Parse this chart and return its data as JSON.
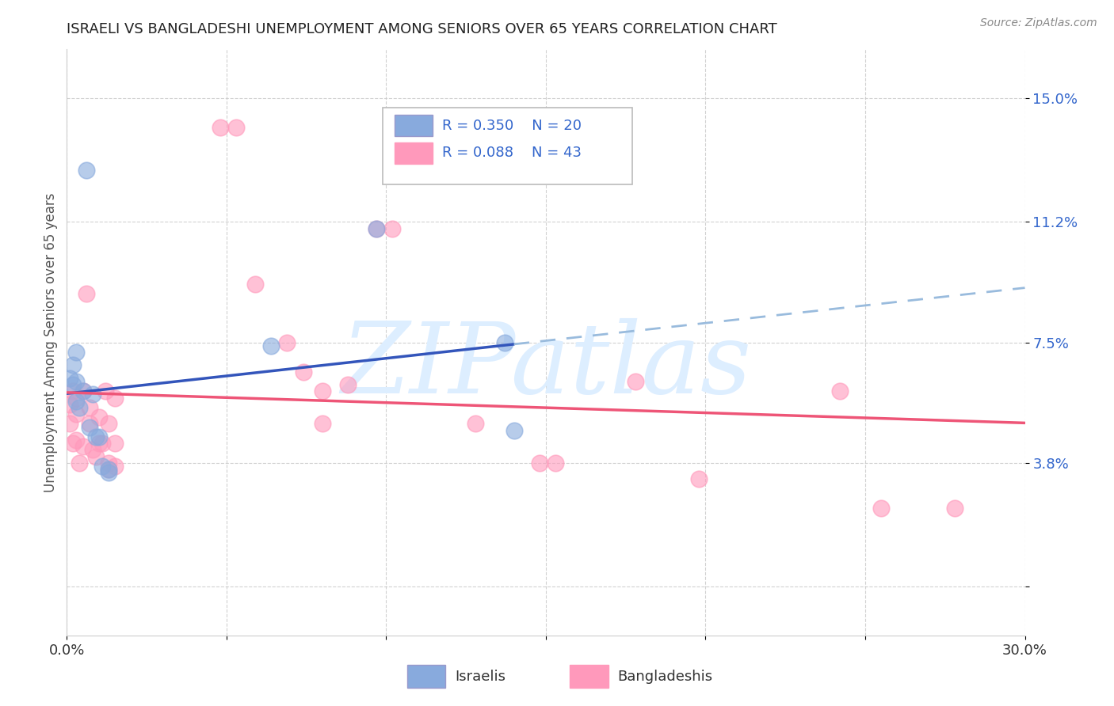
{
  "title": "ISRAELI VS BANGLADESHI UNEMPLOYMENT AMONG SENIORS OVER 65 YEARS CORRELATION CHART",
  "source": "Source: ZipAtlas.com",
  "ylabel": "Unemployment Among Seniors over 65 years",
  "xlim": [
    0.0,
    0.3
  ],
  "ylim": [
    -0.015,
    0.165
  ],
  "ytick_positions": [
    0.0,
    0.038,
    0.075,
    0.112,
    0.15
  ],
  "ytick_labels": [
    "",
    "3.8%",
    "7.5%",
    "11.2%",
    "15.0%"
  ],
  "xtick_positions": [
    0.0,
    0.05,
    0.1,
    0.15,
    0.2,
    0.25,
    0.3
  ],
  "xtick_labels": [
    "0.0%",
    "",
    "",
    "",
    "",
    "",
    "30.0%"
  ],
  "legend_israeli_R": "R = 0.350",
  "legend_israeli_N": "N = 20",
  "legend_bangladeshi_R": "R = 0.088",
  "legend_bangladeshi_N": "N = 43",
  "israeli_color": "#88AADD",
  "bangladeshi_color": "#FF99BB",
  "israeli_trend_color": "#3355BB",
  "bangladeshi_trend_color": "#EE5577",
  "israeli_dashed_color": "#99BBDD",
  "watermark_text": "ZIPatlas",
  "watermark_color": "#DDEEFF",
  "israeli_points": [
    [
      0.001,
      0.064
    ],
    [
      0.002,
      0.068
    ],
    [
      0.002,
      0.062
    ],
    [
      0.003,
      0.072
    ],
    [
      0.003,
      0.063
    ],
    [
      0.003,
      0.057
    ],
    [
      0.004,
      0.055
    ],
    [
      0.005,
      0.06
    ],
    [
      0.006,
      0.128
    ],
    [
      0.007,
      0.049
    ],
    [
      0.008,
      0.059
    ],
    [
      0.009,
      0.046
    ],
    [
      0.01,
      0.046
    ],
    [
      0.011,
      0.037
    ],
    [
      0.013,
      0.036
    ],
    [
      0.013,
      0.035
    ],
    [
      0.064,
      0.074
    ],
    [
      0.097,
      0.11
    ],
    [
      0.137,
      0.075
    ],
    [
      0.14,
      0.048
    ]
  ],
  "bangladeshi_points": [
    [
      0.001,
      0.056
    ],
    [
      0.001,
      0.05
    ],
    [
      0.002,
      0.044
    ],
    [
      0.002,
      0.06
    ],
    [
      0.003,
      0.058
    ],
    [
      0.003,
      0.053
    ],
    [
      0.003,
      0.045
    ],
    [
      0.004,
      0.038
    ],
    [
      0.005,
      0.06
    ],
    [
      0.005,
      0.043
    ],
    [
      0.006,
      0.09
    ],
    [
      0.007,
      0.055
    ],
    [
      0.007,
      0.05
    ],
    [
      0.008,
      0.042
    ],
    [
      0.009,
      0.04
    ],
    [
      0.01,
      0.052
    ],
    [
      0.01,
      0.044
    ],
    [
      0.011,
      0.044
    ],
    [
      0.012,
      0.06
    ],
    [
      0.013,
      0.05
    ],
    [
      0.013,
      0.038
    ],
    [
      0.013,
      0.036
    ],
    [
      0.015,
      0.044
    ],
    [
      0.015,
      0.037
    ],
    [
      0.015,
      0.058
    ],
    [
      0.048,
      0.141
    ],
    [
      0.053,
      0.141
    ],
    [
      0.059,
      0.093
    ],
    [
      0.069,
      0.075
    ],
    [
      0.074,
      0.066
    ],
    [
      0.08,
      0.06
    ],
    [
      0.08,
      0.05
    ],
    [
      0.088,
      0.062
    ],
    [
      0.097,
      0.11
    ],
    [
      0.102,
      0.11
    ],
    [
      0.128,
      0.05
    ],
    [
      0.148,
      0.038
    ],
    [
      0.153,
      0.038
    ],
    [
      0.178,
      0.063
    ],
    [
      0.198,
      0.033
    ],
    [
      0.242,
      0.06
    ],
    [
      0.255,
      0.024
    ],
    [
      0.278,
      0.024
    ]
  ]
}
